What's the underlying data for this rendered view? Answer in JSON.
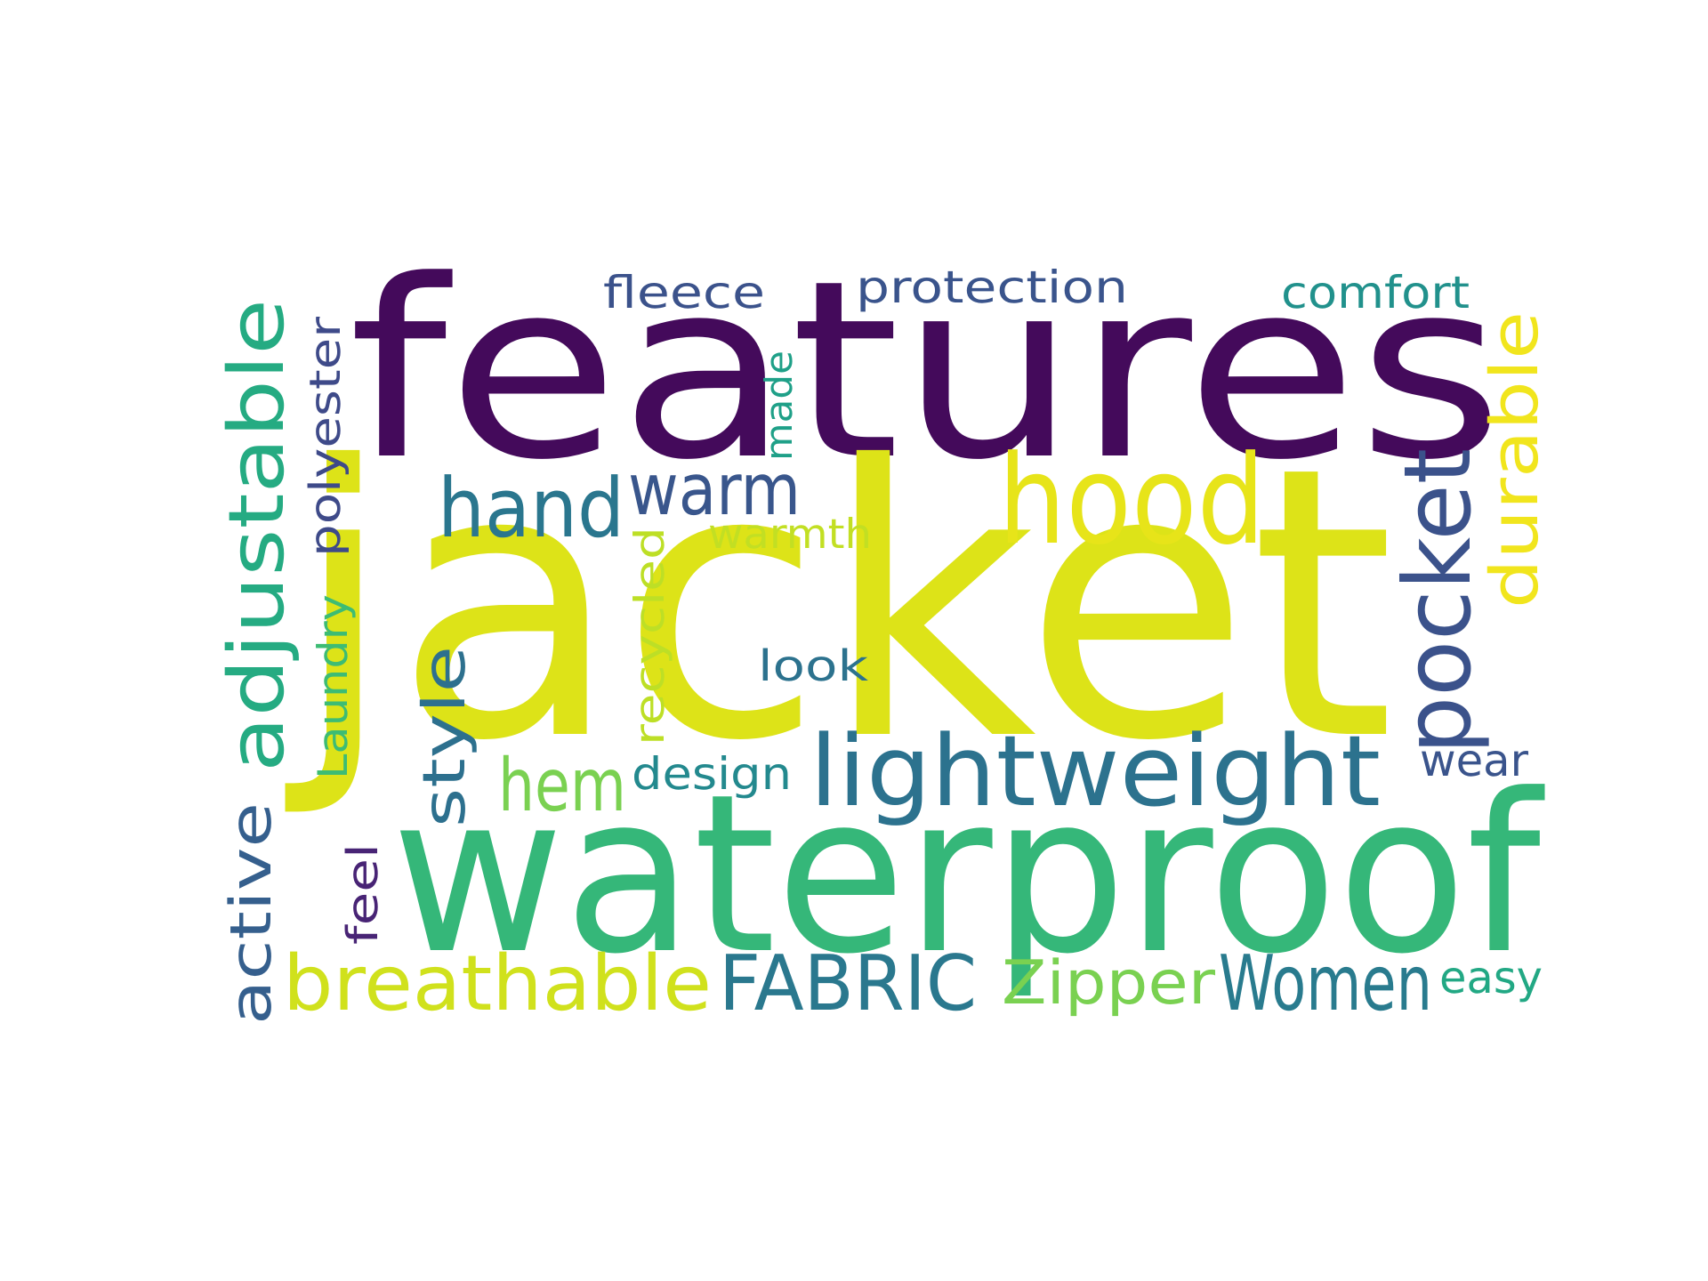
{
  "word_cloud": {
    "words": [
      {
        "key": "features",
        "text": "features",
        "color": "#440a5b",
        "weight": 1.0
      },
      {
        "key": "jacket",
        "text": "jacket",
        "color": "#dde318",
        "weight": 1.0
      },
      {
        "key": "waterproof",
        "text": "waterproof",
        "color": "#35b779",
        "weight": 0.9
      },
      {
        "key": "hood",
        "text": "hood",
        "color": "#e7e419",
        "weight": 0.55
      },
      {
        "key": "pocket",
        "text": "pocket",
        "color": "#3b528b",
        "weight": 0.5
      },
      {
        "key": "lightweight",
        "text": "lightweight",
        "color": "#2c728e",
        "weight": 0.5
      },
      {
        "key": "adjustable",
        "text": "adjustable",
        "color": "#25ab82",
        "weight": 0.45
      },
      {
        "key": "breathable",
        "text": "breathable",
        "color": "#d0e11c",
        "weight": 0.4
      },
      {
        "key": "fabric",
        "text": "FABRIC",
        "color": "#2a788e",
        "weight": 0.4
      },
      {
        "key": "women",
        "text": "Women",
        "color": "#297b8e",
        "weight": 0.4
      },
      {
        "key": "hand",
        "text": "hand",
        "color": "#2a768e",
        "weight": 0.4
      },
      {
        "key": "warm",
        "text": "warm",
        "color": "#39568c",
        "weight": 0.38
      },
      {
        "key": "hem",
        "text": "hem",
        "color": "#7ad151",
        "weight": 0.36
      },
      {
        "key": "durable",
        "text": "durable",
        "color": "#f1e51d",
        "weight": 0.34
      },
      {
        "key": "active",
        "text": "active",
        "color": "#355f8d",
        "weight": 0.32
      },
      {
        "key": "style",
        "text": "style",
        "color": "#2d708e",
        "weight": 0.3
      },
      {
        "key": "zipper",
        "text": "Zipper",
        "color": "#7ad151",
        "weight": 0.3
      },
      {
        "key": "fleece",
        "text": "fleece",
        "color": "#3b528b",
        "weight": 0.22
      },
      {
        "key": "protection",
        "text": "protection",
        "color": "#3a548c",
        "weight": 0.22
      },
      {
        "key": "comfort",
        "text": "comfort",
        "color": "#21918c",
        "weight": 0.22
      },
      {
        "key": "polyester",
        "text": "polyester",
        "color": "#3e4a89",
        "weight": 0.22
      },
      {
        "key": "made",
        "text": "made",
        "color": "#1fa088",
        "weight": 0.2
      },
      {
        "key": "warmth",
        "text": "warmth",
        "color": "#c2df23",
        "weight": 0.2
      },
      {
        "key": "recycled",
        "text": "recycled",
        "color": "#bddf26",
        "weight": 0.22
      },
      {
        "key": "look",
        "text": "look",
        "color": "#2c728e",
        "weight": 0.2
      },
      {
        "key": "laundry",
        "text": "Laundry",
        "color": "#3dbc74",
        "weight": 0.2
      },
      {
        "key": "design",
        "text": "design",
        "color": "#23898e",
        "weight": 0.2
      },
      {
        "key": "wear",
        "text": "wear",
        "color": "#3a548c",
        "weight": 0.2
      },
      {
        "key": "feel",
        "text": "feel",
        "color": "#482475",
        "weight": 0.2
      },
      {
        "key": "easy",
        "text": "easy",
        "color": "#22a884",
        "weight": 0.2
      }
    ]
  }
}
